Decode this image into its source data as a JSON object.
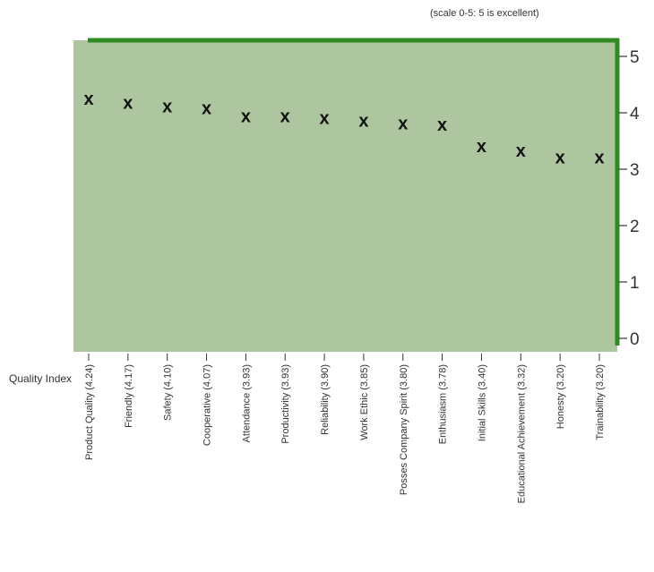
{
  "chart_data": {
    "type": "scatter",
    "note": "(scale 0-5: 5 is excellent)",
    "xlabel": "Quality Index",
    "marker": "x",
    "y_ticks": [
      "0",
      "1",
      "2",
      "3",
      "4",
      "5"
    ],
    "ylim": [
      0,
      5
    ],
    "categories": [
      "Product Quality (4.24)",
      "Friendly (4.17)",
      "Safety (4.10)",
      "Cooperative (4.07)",
      "Attendance (3.93)",
      "Productivity (3.93)",
      "Reliability (3.90)",
      "Work Ethic (3.85)",
      "Posses Company Spirit (3.80)",
      "Enthusiasm (3.78)",
      "Initial Skills (3.40)",
      "Educational Achievement (3.32)",
      "Honesty (3.20)",
      "Trainability (3.20)"
    ],
    "values": [
      4.24,
      4.17,
      4.1,
      4.07,
      3.93,
      3.93,
      3.9,
      3.85,
      3.8,
      3.78,
      3.4,
      3.32,
      3.2,
      3.2
    ],
    "colors": {
      "plot_bg": "#adc69f",
      "axis": "#2e8b22",
      "marker": "#111111"
    }
  }
}
